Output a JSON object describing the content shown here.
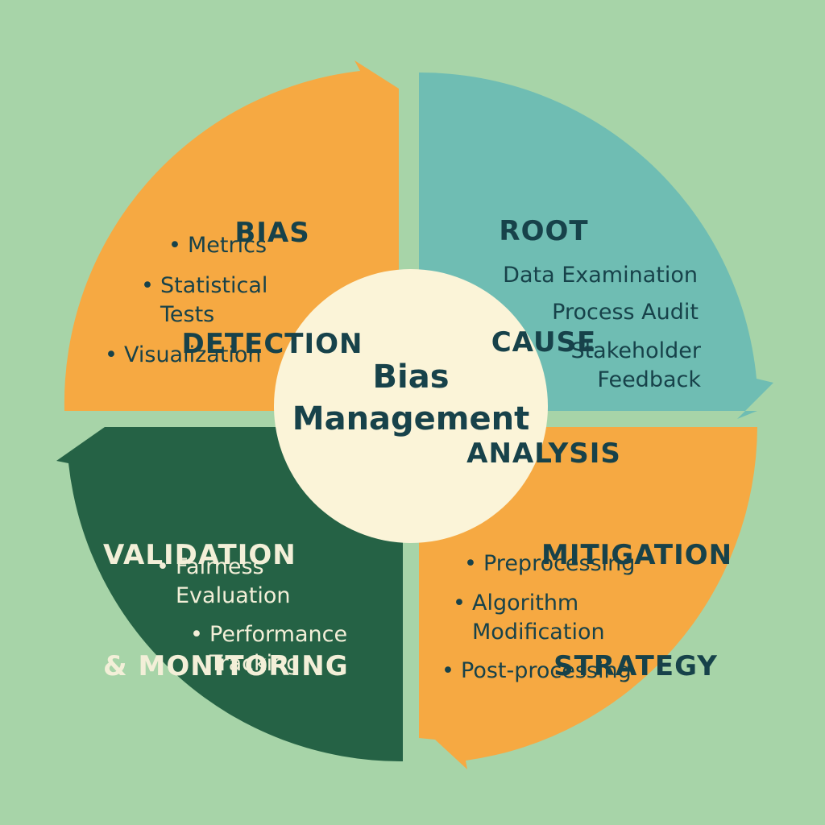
{
  "colors": {
    "background": "#a7d4a8",
    "detection_fill": "#f6a942",
    "root_cause_fill": "#6fbdb3",
    "mitigation_fill": "#f6a942",
    "validation_fill": "#256245",
    "center_fill": "#fbf4d8",
    "dark_text": "#17424a",
    "light_text": "#f3efd8"
  },
  "center": {
    "line1": "Bias",
    "line2": "Management"
  },
  "quadrants": {
    "detection": {
      "title_lines": [
        "BIAS",
        "DETECTION"
      ],
      "items": [
        "Metrics",
        "Statistical\nTests",
        "Visualization"
      ]
    },
    "root_cause": {
      "title_lines": [
        "ROOT",
        "CAUSE",
        "ANALYSIS"
      ],
      "items": [
        "Data Examination",
        "Process Audit",
        "Stakeholder\nFeedback"
      ]
    },
    "mitigation": {
      "title_lines": [
        "MITIGATION",
        "STRATEGY"
      ],
      "items": [
        "Preprocessing",
        "Algorithm\nModification",
        "Post-processing"
      ]
    },
    "validation": {
      "title_lines": [
        "VALIDATION",
        "& MONITORING"
      ],
      "items": [
        "Fairness\nEvaluation",
        "Performance\nTracking"
      ]
    }
  }
}
